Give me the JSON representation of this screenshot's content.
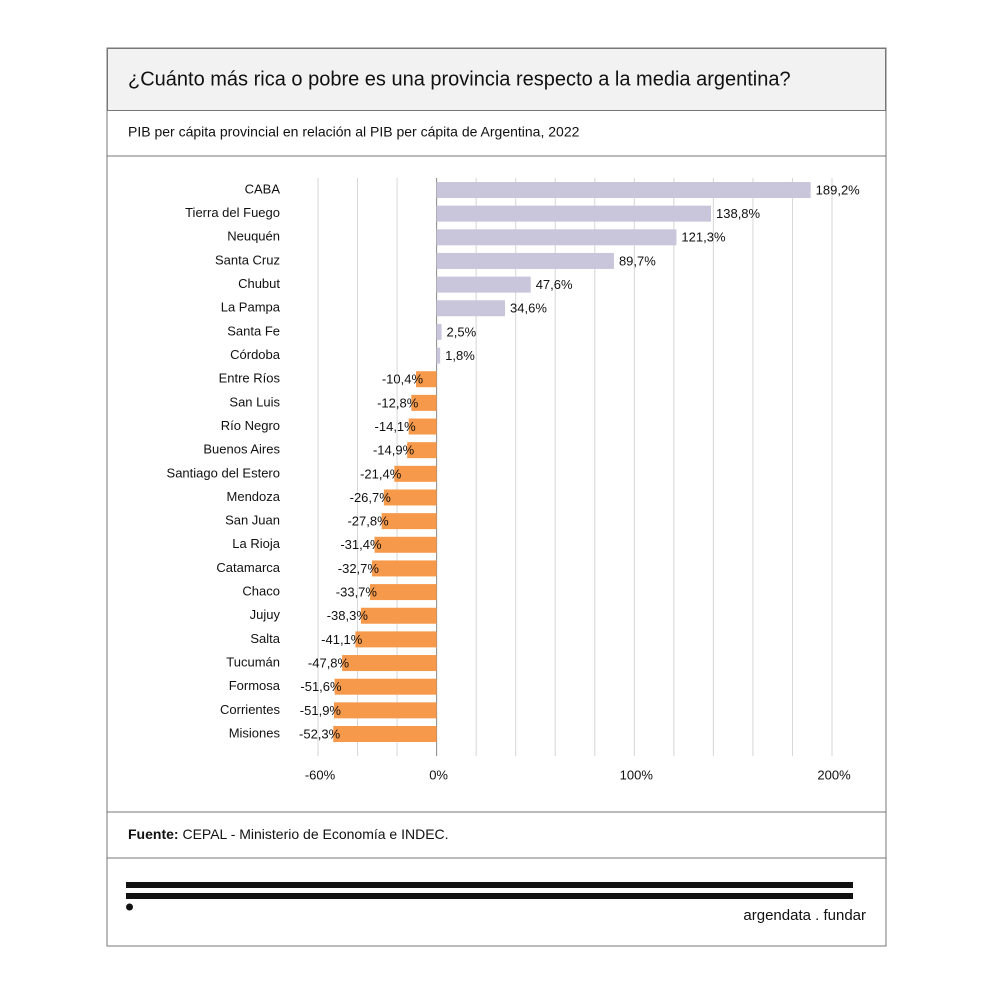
{
  "chart_data": {
    "type": "bar",
    "orientation": "horizontal",
    "title": "¿Cuánto más rica o pobre es una provincia respecto a la media argentina?",
    "subtitle": "PIB per cápita provincial en relación al PIB per cápita de Argentina, 2022",
    "categories": [
      "CABA",
      "Tierra del Fuego",
      "Neuquén",
      "Santa Cruz",
      "Chubut",
      "La Pampa",
      "Santa Fe",
      "Córdoba",
      "Entre Ríos",
      "San Luis",
      "Río Negro",
      "Buenos Aires",
      "Santiago del Estero",
      "Mendoza",
      "San Juan",
      "La Rioja",
      "Catamarca",
      "Chaco",
      "Jujuy",
      "Salta",
      "Tucumán",
      "Formosa",
      "Corrientes",
      "Misiones"
    ],
    "values": [
      189.2,
      138.8,
      121.3,
      89.7,
      47.6,
      34.6,
      2.5,
      1.8,
      -10.4,
      -12.8,
      -14.1,
      -14.9,
      -21.4,
      -26.7,
      -27.8,
      -31.4,
      -32.7,
      -33.7,
      -38.3,
      -41.1,
      -47.8,
      -51.6,
      -51.9,
      -52.3
    ],
    "value_labels": [
      "189,2%",
      "138,8%",
      "121,3%",
      "89,7%",
      "47,6%",
      "34,6%",
      "2,5%",
      "1,8%",
      "-10,4%",
      "-12,8%",
      "-14,1%",
      "-14,9%",
      "-21,4%",
      "-26,7%",
      "-27,8%",
      "-31,4%",
      "-32,7%",
      "-33,7%",
      "-38,3%",
      "-41,1%",
      "-47,8%",
      "-51,6%",
      "-51,9%",
      "-52,3%"
    ],
    "positive_color": "#c9c6dc",
    "negative_color": "#f7994a",
    "xlim": [
      -60,
      200
    ],
    "xticks": [
      {
        "value": -60,
        "label": "-60%"
      },
      {
        "value": 0,
        "label": "0%"
      },
      {
        "value": 100,
        "label": "100%"
      },
      {
        "value": 200,
        "label": "200%"
      }
    ],
    "grid_xticks": [
      -40,
      -20,
      20,
      40,
      60,
      80,
      120,
      140,
      160,
      180
    ],
    "grid": true
  },
  "source_label": "Fuente:",
  "source": "CEPAL - Ministerio de Economía e INDEC.",
  "brand": "argendata . fundar"
}
